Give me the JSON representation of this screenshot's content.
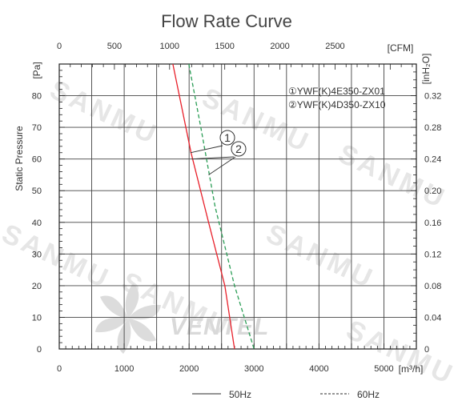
{
  "chart_data": {
    "type": "line",
    "title": "Flow Rate Curve",
    "ylabel": "Static Pressure",
    "x_axis_bottom": {
      "unit": "[m³/h]",
      "range": [
        0,
        5500
      ],
      "ticks": [
        0,
        1000,
        2000,
        3000,
        4000,
        5000
      ]
    },
    "x_axis_top": {
      "unit": "[CFM]",
      "range": [
        0,
        3237
      ],
      "ticks": [
        0,
        500,
        1000,
        1500,
        2000,
        2500
      ]
    },
    "y_axis_left": {
      "unit": "[Pa]",
      "range": [
        0,
        90
      ],
      "ticks": [
        0,
        10,
        20,
        30,
        40,
        50,
        60,
        70,
        80
      ]
    },
    "y_axis_right": {
      "unit": "[inH₂O]",
      "range": [
        0,
        0.36
      ],
      "ticks": [
        "0",
        "0.04",
        "0.08",
        "0.12",
        "0.16",
        "0.20",
        "0.24",
        "0.28",
        "0.32"
      ]
    },
    "grid": true,
    "series": [
      {
        "name": "50Hz",
        "color": "#e8202a",
        "dash": "solid",
        "points": [
          [
            1750,
            90
          ],
          [
            2030,
            62
          ],
          [
            2300,
            40
          ],
          [
            2550,
            20
          ],
          [
            2700,
            0
          ]
        ]
      },
      {
        "name": "60Hz",
        "color": "#2a9d55",
        "dash": "dashed",
        "points": [
          [
            1995,
            90
          ],
          [
            2180,
            70
          ],
          [
            2400,
            45
          ],
          [
            2700,
            20
          ],
          [
            3000,
            0
          ]
        ]
      }
    ],
    "models": [
      {
        "marker": "①",
        "label": "YWF(K)4E350-ZX01"
      },
      {
        "marker": "②",
        "label": "YWF(K)4D350-ZX10"
      }
    ],
    "callouts": [
      "1",
      "2"
    ],
    "legend": {
      "placement": "bottom",
      "items": [
        {
          "label": "50Hz",
          "style": "solid",
          "color": "#555555"
        },
        {
          "label": "60Hz",
          "style": "dashed",
          "color": "#555555"
        }
      ]
    },
    "watermark": {
      "brand": "VENTEL",
      "text": "SANMU"
    }
  }
}
